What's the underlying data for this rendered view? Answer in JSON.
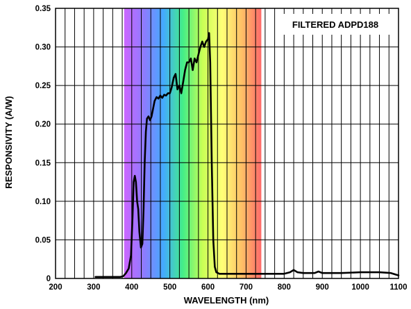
{
  "chart_data": {
    "type": "line",
    "title": "",
    "annotation": "FILTERED ADPD188",
    "xlabel": "WAVELENGTH (nm)",
    "ylabel": "RESPONSIVITY (A/W)",
    "xlim": [
      200,
      1100
    ],
    "ylim": [
      0,
      0.35
    ],
    "x_ticks": [
      200,
      300,
      400,
      500,
      600,
      700,
      800,
      900,
      1000,
      1100
    ],
    "x_tick_labels": [
      "200",
      "300",
      "400",
      "500",
      "600",
      "700",
      "800",
      "900",
      "1000",
      "1100"
    ],
    "y_ticks": [
      0,
      0.05,
      0.1,
      0.15,
      0.2,
      0.25,
      0.3,
      0.35
    ],
    "y_tick_labels": [
      "0",
      "0.05",
      "0.10",
      "0.15",
      "0.20",
      "0.25",
      "0.30",
      "0.35"
    ],
    "x_grid_step": 25,
    "y_grid_step": 0.05,
    "grid": true,
    "line_color": "#000000",
    "spectrum_band": {
      "range": [
        380,
        740
      ],
      "colors": [
        "#cc66ff",
        "#8f7aff",
        "#44aaff",
        "#44ee88",
        "#c8ff55",
        "#ffff77",
        "#ffc066",
        "#ff6a6a"
      ]
    },
    "series": [
      {
        "x": [
          305,
          350,
          370,
          378,
          385,
          392,
          398,
          402,
          405,
          408,
          411,
          414,
          417,
          420,
          424,
          428,
          431,
          434,
          437,
          440,
          444,
          448,
          452,
          456,
          460,
          465,
          470,
          475,
          480,
          485,
          490,
          495,
          500,
          505,
          510,
          515,
          520,
          525,
          530,
          535,
          540,
          545,
          550,
          555,
          560,
          565,
          570,
          575,
          580,
          585,
          590,
          595,
          600,
          603,
          606,
          610,
          614,
          618,
          622,
          630,
          650,
          700,
          750,
          800,
          815,
          825,
          835,
          850,
          880,
          890,
          900,
          950,
          1000,
          1050,
          1080,
          1100
        ],
        "y": [
          0.002,
          0.002,
          0.002,
          0.003,
          0.007,
          0.013,
          0.03,
          0.08,
          0.125,
          0.133,
          0.125,
          0.1,
          0.09,
          0.06,
          0.04,
          0.045,
          0.09,
          0.15,
          0.19,
          0.207,
          0.21,
          0.205,
          0.21,
          0.22,
          0.23,
          0.235,
          0.233,
          0.237,
          0.234,
          0.238,
          0.237,
          0.24,
          0.24,
          0.248,
          0.26,
          0.265,
          0.245,
          0.25,
          0.24,
          0.255,
          0.27,
          0.28,
          0.28,
          0.285,
          0.27,
          0.285,
          0.28,
          0.29,
          0.3,
          0.307,
          0.3,
          0.307,
          0.31,
          0.318,
          0.28,
          0.15,
          0.05,
          0.015,
          0.008,
          0.006,
          0.006,
          0.006,
          0.006,
          0.006,
          0.008,
          0.011,
          0.008,
          0.007,
          0.007,
          0.009,
          0.007,
          0.007,
          0.008,
          0.008,
          0.007,
          0.004
        ]
      }
    ]
  }
}
